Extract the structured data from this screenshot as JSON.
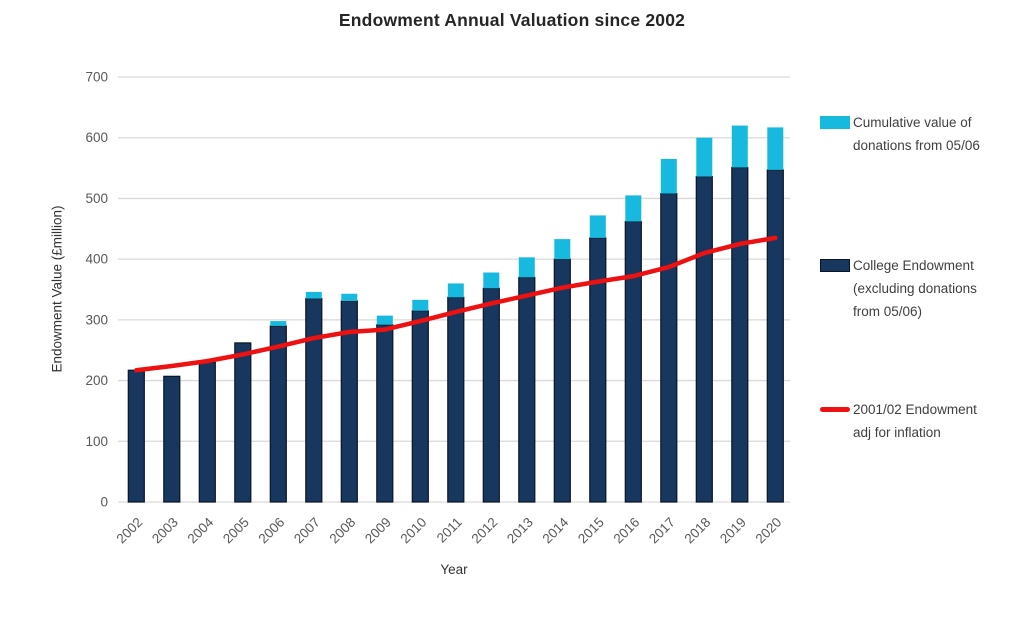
{
  "title": "Endowment Annual Valuation since 2002",
  "chart_data": {
    "type": "bar",
    "subtype": "stacked-bar-with-line-overlay",
    "title": "Endowment Annual Valuation since 2002",
    "xlabel": "Year",
    "ylabel": "Endowment Value (£million)",
    "ylim": [
      0,
      700
    ],
    "ytick_interval": 100,
    "yticks": [
      0,
      100,
      200,
      300,
      400,
      500,
      600,
      700
    ],
    "grid": "horizontal",
    "legend_position": "right",
    "categories": [
      "2002",
      "2003",
      "2004",
      "2005",
      "2006",
      "2007",
      "2008",
      "2009",
      "2010",
      "2011",
      "2012",
      "2013",
      "2014",
      "2015",
      "2016",
      "2017",
      "2018",
      "2019",
      "2020"
    ],
    "series": [
      {
        "name": "College Endowment (excluding donations from 05/06)",
        "type": "bar",
        "stack": "endowment",
        "color": "#17375e",
        "border_color": "#0b1526",
        "values": [
          217,
          207,
          230,
          262,
          290,
          335,
          331,
          292,
          315,
          337,
          352,
          370,
          400,
          435,
          462,
          508,
          536,
          551,
          547
        ]
      },
      {
        "name": "Cumulative value of donations from 05/06",
        "type": "bar",
        "stack": "endowment",
        "color": "#18b9de",
        "border_color": "none",
        "values": [
          0,
          0,
          0,
          0,
          8,
          11,
          12,
          15,
          18,
          23,
          26,
          33,
          33,
          37,
          43,
          57,
          64,
          69,
          70
        ]
      },
      {
        "name": "2001/02 Endowment adj for inflation",
        "type": "line",
        "color": "#ee1111",
        "values": [
          217,
          224,
          232,
          243,
          256,
          270,
          280,
          284,
          298,
          313,
          327,
          340,
          353,
          363,
          372,
          387,
          410,
          425,
          435
        ]
      }
    ]
  },
  "legend": {
    "items": [
      {
        "label": "Cumulative value of donations from 05/06",
        "swatch": "bar",
        "color": "#18b9de"
      },
      {
        "label": "College Endowment (excluding donations from 05/06)",
        "swatch": "bar",
        "color": "#17375e"
      },
      {
        "label": "2001/02 Endowment adj for inflation",
        "swatch": "line",
        "color": "#ee1111"
      }
    ]
  },
  "colors": {
    "grid": "#d9d9d9",
    "tick_label": "#595959",
    "axis_title": "#333333",
    "chart_title": "#262626",
    "bar_navy": "#17375e",
    "bar_cyan": "#18b9de",
    "line_red": "#ee1111"
  }
}
